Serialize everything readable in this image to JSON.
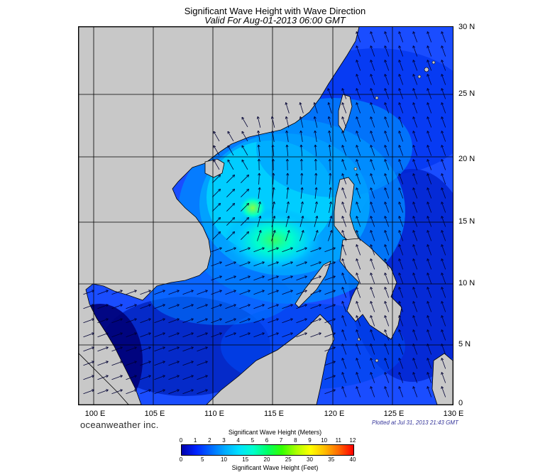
{
  "title": "Significant Wave Height with Wave Direction",
  "subtitle": "Valid For Aug-01-2013 06:00 GMT",
  "brand": "oceanweather inc.",
  "plot_time": "Plotted at Jul 31, 2013 21:43 GMT",
  "lon_labels": [
    "100 E",
    "105 E",
    "110 E",
    "115 E",
    "120 E",
    "125 E",
    "130 E"
  ],
  "lat_labels": [
    "30 N",
    "25 N",
    "20 N",
    "15 N",
    "10 N",
    "5 N",
    "0"
  ],
  "legend": {
    "title_meters": "Significant Wave Height (Meters)",
    "title_feet": "Significant Wave Height (Feet)",
    "meters": [
      "0",
      "1",
      "2",
      "3",
      "4",
      "5",
      "6",
      "7",
      "8",
      "9",
      "10",
      "11",
      "12"
    ],
    "feet": [
      "0",
      "5",
      "10",
      "15",
      "20",
      "25",
      "30",
      "35",
      "40"
    ],
    "colors": [
      "#0000aa",
      "#0022ff",
      "#0066ff",
      "#00aaff",
      "#00e0ff",
      "#00ffcc",
      "#00ff66",
      "#33ff00",
      "#aaff00",
      "#ffff00",
      "#ffbb00",
      "#ff6600",
      "#ff0000"
    ]
  },
  "colors": {
    "land": "#c8c8c8",
    "grid": "#000000",
    "arrow": "#000033"
  }
}
